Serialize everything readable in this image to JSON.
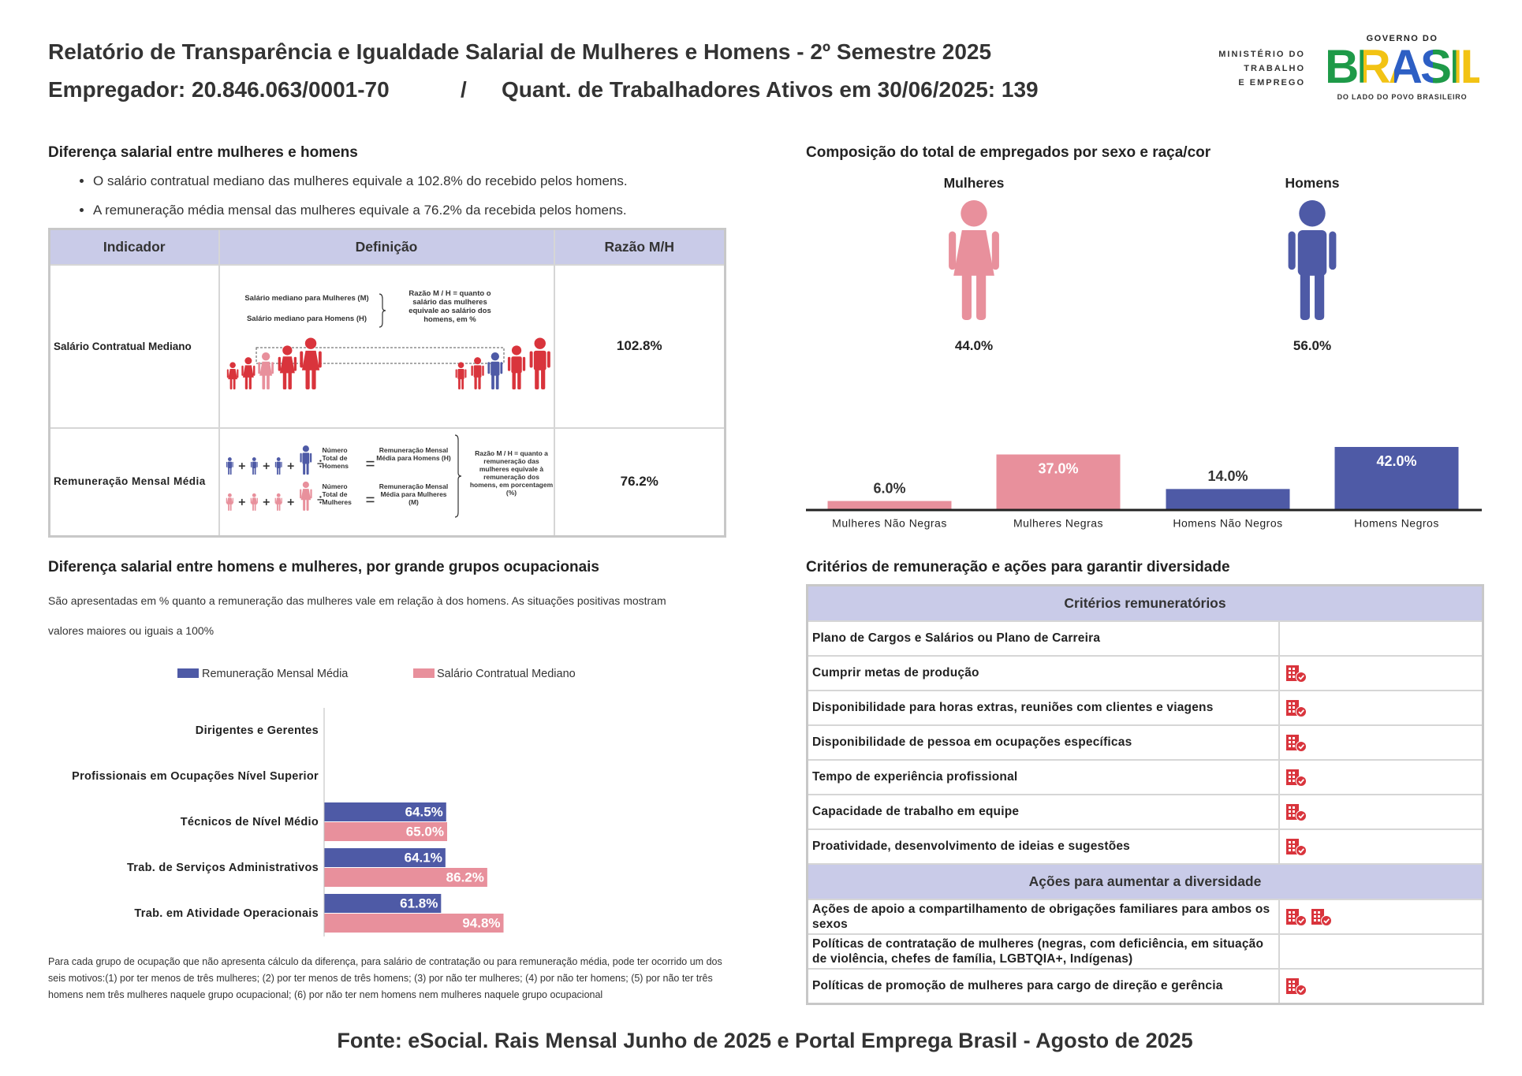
{
  "header": {
    "title": "Relatório de Transparência e Igualdade Salarial de Mulheres e Homens - 2º Semestre 2025",
    "employer": "Empregador: 20.846.063/0001-70",
    "separator": "/",
    "workers": "Quant. de Trabalhadores Ativos em 30/06/2025: 139"
  },
  "logo": {
    "ministry": [
      "MINISTÉRIO DO",
      "TRABALHO",
      "E EMPREGO"
    ],
    "government": "GOVERNO DO",
    "country": "BRASIL",
    "slogan": "DO LADO DO POVO BRASILEIRO"
  },
  "salary_gap": {
    "title": "Diferença salarial entre mulheres e homens",
    "bullets": [
      "O salário contratual mediano das mulheres equivale a 102.8% do recebido pelos homens.",
      "A remuneração média mensal das mulheres equivale a 76.2% da recebida pelos homens."
    ],
    "table": {
      "headers": [
        "Indicador",
        "Definição",
        "Razão M/H"
      ],
      "rows": [
        {
          "indicator": "Salário Contratual Mediano",
          "diagram": [
            "Salário mediano para Mulheres (M)",
            "Salário mediano para Homens (H)",
            "Razão M / H = quanto o salário das mulheres equivale ao salário dos homens, em %"
          ],
          "ratio": "102.8%"
        },
        {
          "indicator": "Remuneração Mensal Média",
          "diagram": [
            "Número Total de Homens",
            "Remuneração Mensal Média para Homens (H)",
            "Número Total de Mulheres",
            "Remuneração Mensal Média para Mulheres (M)",
            "Razão M / H = quanto a remuneração das mulheres equivale à remuneração dos homens, em porcentagem (%)"
          ],
          "ratio": "76.2%"
        }
      ]
    }
  },
  "composition": {
    "groups": [
      {
        "label": "Mulheres",
        "share": "44.0%",
        "color": "#e8909c"
      },
      {
        "label": "Homens",
        "share": "56.0%",
        "color": "#4e5aa6"
      }
    ]
  },
  "chart_data": [
    {
      "type": "bar",
      "title": "Composição do total de empregados por sexo e raça/cor",
      "categories": [
        "Mulheres Não Negras",
        "Mulheres Negras",
        "Homens Não Negros",
        "Homens Negros"
      ],
      "values": [
        6.0,
        37.0,
        14.0,
        42.0
      ],
      "value_labels": [
        "6.0%",
        "37.0%",
        "14.0%",
        "42.0%"
      ],
      "colors": [
        "#e8909c",
        "#e8909c",
        "#4e5aa6",
        "#4e5aa6"
      ]
    },
    {
      "type": "barh",
      "title": "Diferença salarial entre homens e mulheres, por grande grupos ocupacionais",
      "subtitle": "São apresentadas em % quanto a remuneração das mulheres vale em relação à dos homens. As situações positivas mostram valores maiores ou iguais a 100%",
      "categories": [
        "Dirigentes e Gerentes",
        "Profissionais em Ocupações Nível Superior",
        "Técnicos de Nível Médio",
        "Trab. de Serviços Administrativos",
        "Trab. em Atividade Operacionais"
      ],
      "series": [
        {
          "name": "Remuneração Mensal Média",
          "color": "#4e5aa6",
          "values": [
            null,
            null,
            64.5,
            64.1,
            61.8
          ],
          "value_labels": [
            null,
            null,
            "64.5%",
            "64.1%",
            "61.8%"
          ]
        },
        {
          "name": "Salário Contratual Mediano",
          "color": "#e8909c",
          "values": [
            null,
            null,
            65.0,
            86.2,
            94.8
          ],
          "value_labels": [
            null,
            null,
            "65.0%",
            "86.2%",
            "94.8%"
          ]
        }
      ],
      "note": "Para cada grupo de ocupação que não apresenta cálculo da diferença, para salário de contratação ou para remuneração média, pode ter ocorrido um dos seis motivos:(1) por ter menos de três mulheres; (2) por ter menos de três homens; (3) por não ter mulheres; (4) por não ter homens; (5) por não ter três homens nem três mulheres naquele grupo ocupacional; (6) por não ter nem homens nem mulheres naquele grupo ocupacional"
    }
  ],
  "criteria": {
    "title": "Critérios de remuneração e ações para garantir diversidade",
    "sections": [
      {
        "title": "Critérios remuneratórios",
        "rows": [
          {
            "label": "Plano de Cargos e Salários ou Plano de Carreira",
            "icons": 0
          },
          {
            "label": "Cumprir metas de produção",
            "icons": 1
          },
          {
            "label": "Disponibilidade para horas extras, reuniões com clientes e viagens",
            "icons": 1
          },
          {
            "label": "Disponibilidade de pessoa em ocupações específicas",
            "icons": 1
          },
          {
            "label": "Tempo de experiência profissional",
            "icons": 1
          },
          {
            "label": "Capacidade de trabalho em equipe",
            "icons": 1
          },
          {
            "label": "Proatividade, desenvolvimento de ideias e sugestões",
            "icons": 1
          }
        ]
      },
      {
        "title": "Ações para aumentar a diversidade",
        "rows": [
          {
            "label": "Ações de apoio a compartilhamento de obrigações familiares para ambos os sexos",
            "icons": 2
          },
          {
            "label": "Políticas de contratação de mulheres (negras, com deficiência, em situação de violência, chefes de família, LGBTQIA+, Indígenas)",
            "icons": 0
          },
          {
            "label": "Políticas de promoção de mulheres para cargo de direção e gerência",
            "icons": 1
          }
        ]
      }
    ]
  },
  "source": "Fonte: eSocial. Rais Mensal Junho de 2025 e Portal Emprega Brasil - Agosto de 2025"
}
